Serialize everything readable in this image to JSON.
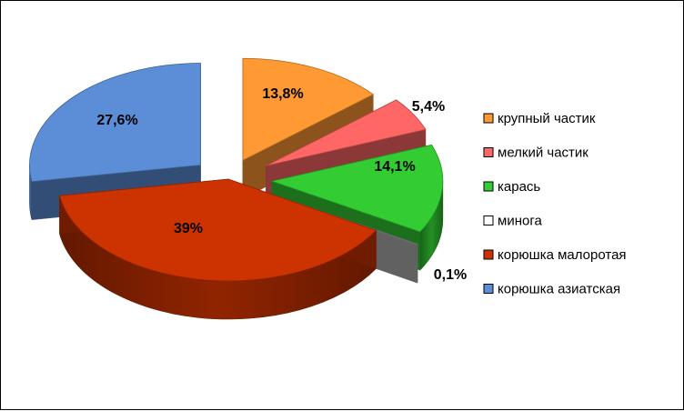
{
  "chart_data": {
    "type": "pie",
    "style": "3d-exploded",
    "legend_position": "right",
    "categories": [
      "крупный частик",
      "мелкий частик",
      "карась",
      "минога",
      "корюшка малоротая",
      "корюшка азиатская"
    ],
    "values": [
      13.8,
      5.4,
      14.1,
      0.1,
      39.0,
      27.6
    ],
    "labels": [
      "13,8%",
      "5,4%",
      "14,1%",
      "0,1%",
      "39%",
      "27,6%"
    ],
    "colors": [
      "#FF9933",
      "#FF6666",
      "#33CC33",
      "#FFFFFF",
      "#CC3300",
      "#5B8ED6"
    ]
  }
}
